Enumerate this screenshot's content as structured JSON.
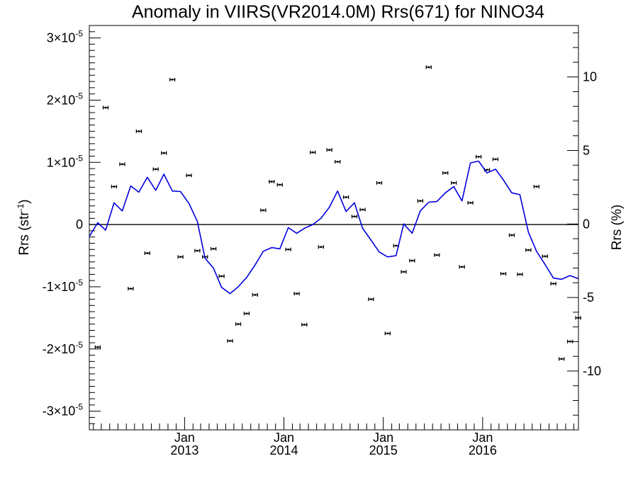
{
  "chart_data": {
    "type": "line",
    "title": "Anomaly in VIIRS(VR2014.0M) Rrs(671) for NINO34",
    "ylabel_left": "Rrs (str",
    "ylabel_left_sup": "-1",
    "ylabel_left_close": ")",
    "ylabel_right": "Rrs (%)",
    "ylim": [
      -3.3e-05,
      3.2e-05
    ],
    "ylim_right": [
      -14.0,
      13.5
    ],
    "xlim": [
      "2012-01-17",
      "2016-12-18"
    ],
    "grid": false,
    "y_ticks": [
      {
        "mantissa": "-3",
        "exp": "-5"
      },
      {
        "mantissa": "-2",
        "exp": "-5"
      },
      {
        "mantissa": "-1",
        "exp": "-5"
      },
      {
        "mantissa": "0",
        "exp": ""
      },
      {
        "mantissa": "1",
        "exp": "-5"
      },
      {
        "mantissa": "2",
        "exp": "-5"
      },
      {
        "mantissa": "3",
        "exp": "-5"
      }
    ],
    "y_ticks_right": [
      "-10",
      "-5",
      "0",
      "5",
      "10"
    ],
    "x_ticks": [
      {
        "month": "Jan",
        "year": "2013",
        "date": "2013-01-01"
      },
      {
        "month": "Jan",
        "year": "2014",
        "date": "2014-01-01"
      },
      {
        "month": "Jan",
        "year": "2015",
        "date": "2015-01-01"
      },
      {
        "month": "Jan",
        "year": "2016",
        "date": "2016-01-01"
      }
    ],
    "zero_line": 0,
    "series": [
      {
        "kind": "line",
        "color": "#0000dd",
        "x": [
          "2012-01-17",
          "2012-02-17",
          "2012-03-17",
          "2012-04-17",
          "2012-05-17",
          "2012-06-17",
          "2012-07-17",
          "2012-08-17",
          "2012-09-17",
          "2012-10-17",
          "2012-11-17",
          "2012-12-17",
          "2013-01-17",
          "2013-02-17",
          "2013-03-17",
          "2013-04-17",
          "2013-05-17",
          "2013-06-17",
          "2013-07-17",
          "2013-08-17",
          "2013-09-17",
          "2013-10-17",
          "2013-11-17",
          "2013-12-17",
          "2014-01-17",
          "2014-02-17",
          "2014-03-17",
          "2014-04-17",
          "2014-05-17",
          "2014-06-17",
          "2014-07-17",
          "2014-08-17",
          "2014-09-17",
          "2014-10-17",
          "2014-11-17",
          "2014-12-17",
          "2015-01-17",
          "2015-02-17",
          "2015-03-17",
          "2015-04-17",
          "2015-05-17",
          "2015-06-17",
          "2015-07-17",
          "2015-08-17",
          "2015-09-17",
          "2015-10-17",
          "2015-11-17",
          "2015-12-17",
          "2016-01-17",
          "2016-02-17",
          "2016-03-17",
          "2016-04-17",
          "2016-05-17",
          "2016-06-17",
          "2016-07-17",
          "2016-08-17",
          "2016-09-17",
          "2016-10-17",
          "2016-11-17",
          "2016-12-17"
        ],
        "y": [
          -1.9e-06,
          3e-07,
          -9e-07,
          3.5e-06,
          2.2e-06,
          6.2e-06,
          5.2e-06,
          7.6e-06,
          5.5e-06,
          8.1e-06,
          5.4e-06,
          5.3e-06,
          3.4e-06,
          5e-07,
          -5.4e-06,
          -7e-06,
          -1.01e-05,
          -1.11e-05,
          -1e-05,
          -8.5e-06,
          -6.5e-06,
          -4.3e-06,
          -3.7e-06,
          -3.9e-06,
          -5e-07,
          -1.4e-06,
          -6e-07,
          0.0,
          1e-06,
          2.8e-06,
          5.4e-06,
          2.1e-06,
          3.5e-06,
          -6e-07,
          -2.5e-06,
          -4.4e-06,
          -5.2e-06,
          -5e-06,
          1e-07,
          -1.4e-06,
          2.2e-06,
          3.6e-06,
          3.7e-06,
          5.1e-06,
          6.1e-06,
          3.8e-06,
          9.9e-06,
          1.02e-05,
          8.3e-06,
          8.9e-06,
          7.2e-06,
          5.1e-06,
          4.8e-06,
          -1.2e-06,
          -4.3e-06,
          -6.4e-06,
          -8.6e-06,
          -8.8e-06,
          -8.2e-06,
          -8.7e-06
        ]
      },
      {
        "kind": "points",
        "color": "#000000",
        "x": [
          "2012-02-17",
          "2012-03-17",
          "2012-04-17",
          "2012-05-17",
          "2012-06-17",
          "2012-07-17",
          "2012-08-17",
          "2012-09-17",
          "2012-10-17",
          "2012-11-17",
          "2012-12-17",
          "2013-01-17",
          "2013-02-17",
          "2013-03-17",
          "2013-04-17",
          "2013-05-17",
          "2013-06-17",
          "2013-07-17",
          "2013-08-17",
          "2013-09-17",
          "2013-10-17",
          "2013-11-17",
          "2013-12-17",
          "2014-01-17",
          "2014-02-17",
          "2014-03-17",
          "2014-04-17",
          "2014-05-17",
          "2014-06-17",
          "2014-07-17",
          "2014-08-17",
          "2014-09-17",
          "2014-10-17",
          "2014-11-17",
          "2014-12-17",
          "2015-01-17",
          "2015-02-17",
          "2015-03-17",
          "2015-04-17",
          "2015-05-17",
          "2015-06-17",
          "2015-07-17",
          "2015-08-17",
          "2015-09-17",
          "2015-10-17",
          "2015-11-17",
          "2015-12-17",
          "2016-01-17",
          "2016-02-17",
          "2016-03-17",
          "2016-04-17",
          "2016-05-17",
          "2016-06-17",
          "2016-07-17",
          "2016-08-17",
          "2016-09-17",
          "2016-10-17",
          "2016-11-17",
          "2016-12-17"
        ],
        "y": [
          -1.97e-05,
          1.88e-05,
          6.1e-06,
          9.7e-06,
          -1.03e-05,
          1.5e-05,
          -4.6e-06,
          8.9e-06,
          1.15e-05,
          2.33e-05,
          -5.2e-06,
          7.9e-06,
          -4.2e-06,
          -5.2e-06,
          -3.9e-06,
          -8.3e-06,
          -1.87e-05,
          -1.6e-05,
          -1.43e-05,
          -1.13e-05,
          2.3e-06,
          6.9e-06,
          6.4e-06,
          -4e-06,
          -1.11e-05,
          -1.61e-05,
          1.16e-05,
          -3.6e-06,
          1.2e-05,
          1.01e-05,
          4.4e-06,
          1.3e-06,
          2.4e-06,
          -1.2e-05,
          6.7e-06,
          -1.75e-05,
          -3.4e-06,
          -7.6e-06,
          -5.8e-06,
          3.8e-06,
          2.53e-05,
          -4.9e-06,
          8.3e-06,
          6.7e-06,
          -6.8e-06,
          3.5e-06,
          1.09e-05,
          8.8e-06,
          1.05e-05,
          -7.9e-06,
          -1.7e-06,
          -8e-06,
          -4.1e-06,
          6.1e-06,
          -5.1e-06,
          -9.5e-06,
          -2.16e-05,
          -1.88e-05,
          -1.5e-05
        ]
      }
    ]
  }
}
